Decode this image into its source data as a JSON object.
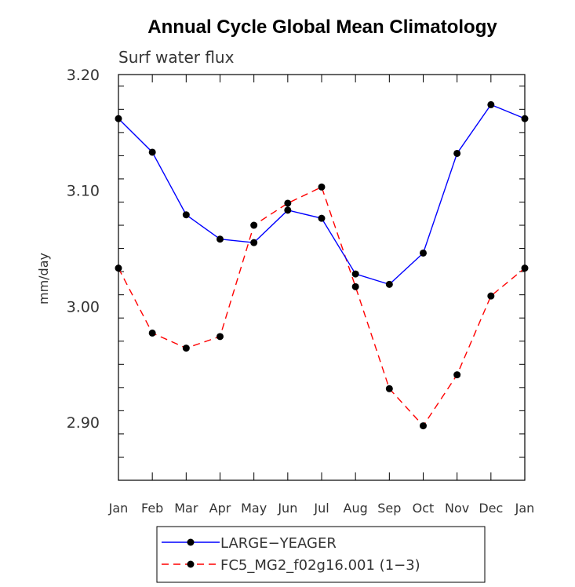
{
  "chart_data": {
    "type": "line",
    "title": "Annual Cycle Global Mean Climatology",
    "subtitle": "Surf water flux",
    "xlabel": "",
    "ylabel": "mm/day",
    "categories": [
      "Jan",
      "Feb",
      "Mar",
      "Apr",
      "May",
      "Jun",
      "Jul",
      "Aug",
      "Sep",
      "Oct",
      "Nov",
      "Dec",
      "Jan"
    ],
    "ylim": [
      2.85,
      3.2
    ],
    "yticks": [
      2.9,
      3.0,
      3.1,
      3.2
    ],
    "ytick_labels": [
      "2.90",
      "3.00",
      "3.10",
      "3.20"
    ],
    "series": [
      {
        "name": "LARGE−YEAGER",
        "color": "#0000ff",
        "dash": "solid",
        "values": [
          3.162,
          3.133,
          3.079,
          3.058,
          3.055,
          3.083,
          3.076,
          3.028,
          3.019,
          3.046,
          3.132,
          3.174,
          3.162
        ]
      },
      {
        "name": "FC5_MG2_f02g16.001 (1−3)",
        "color": "#ff0000",
        "dash": "dashed",
        "values": [
          3.033,
          2.977,
          2.964,
          2.974,
          3.07,
          3.089,
          3.103,
          3.017,
          2.929,
          2.897,
          2.941,
          3.009,
          3.033
        ]
      }
    ],
    "legend_position": "bottom-left"
  }
}
